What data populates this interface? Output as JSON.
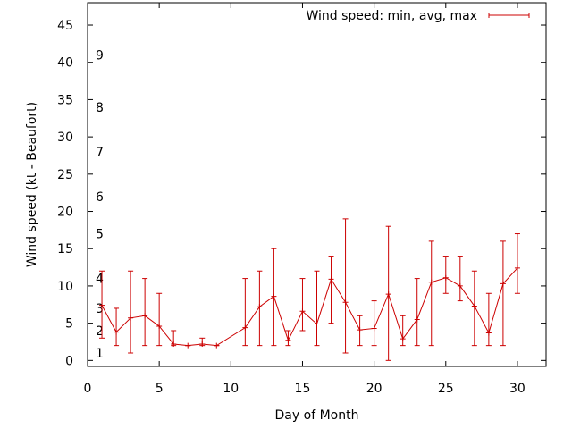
{
  "chart_data": {
    "type": "line",
    "title": "",
    "xlabel": "Day of Month",
    "ylabel": "Wind speed (kt - Beaufort)",
    "xlim": [
      0,
      32
    ],
    "ylim": [
      -0.8,
      48
    ],
    "xticks": [
      0,
      5,
      10,
      15,
      20,
      25,
      30
    ],
    "yticks": [
      0,
      5,
      10,
      15,
      20,
      25,
      30,
      35,
      40,
      45
    ],
    "grid": false,
    "legend": "top-right",
    "series": [
      {
        "name": "Wind speed: min, avg, max",
        "color": "#cc0000",
        "points": [
          {
            "x": 1,
            "min": 3,
            "avg": 7.4,
            "max": 12
          },
          {
            "x": 2,
            "min": 2,
            "avg": 3.8,
            "max": 7
          },
          {
            "x": 3,
            "min": 1,
            "avg": 5.7,
            "max": 12
          },
          {
            "x": 4,
            "min": 2,
            "avg": 6.0,
            "max": 11
          },
          {
            "x": 5,
            "min": 2,
            "avg": 4.6,
            "max": 9
          },
          {
            "x": 6,
            "min": 2,
            "avg": 2.2,
            "max": 4
          },
          {
            "x": 7,
            "min": 2,
            "avg": 2.0,
            "max": 2
          },
          {
            "x": 8,
            "min": 2,
            "avg": 2.2,
            "max": 3
          },
          {
            "x": 9,
            "min": 2,
            "avg": 2.0,
            "max": 2
          },
          {
            "x": 11,
            "min": 2,
            "avg": 4.4,
            "max": 11
          },
          {
            "x": 12,
            "min": 2,
            "avg": 7.2,
            "max": 12
          },
          {
            "x": 13,
            "min": 2,
            "avg": 8.6,
            "max": 15
          },
          {
            "x": 14,
            "min": 2,
            "avg": 2.7,
            "max": 4
          },
          {
            "x": 15,
            "min": 4,
            "avg": 6.6,
            "max": 11
          },
          {
            "x": 16,
            "min": 2,
            "avg": 4.9,
            "max": 12
          },
          {
            "x": 17,
            "min": 5,
            "avg": 10.9,
            "max": 14
          },
          {
            "x": 18,
            "min": 1,
            "avg": 7.8,
            "max": 19
          },
          {
            "x": 19,
            "min": 2,
            "avg": 4.1,
            "max": 6
          },
          {
            "x": 20,
            "min": 2,
            "avg": 4.3,
            "max": 8
          },
          {
            "x": 21,
            "min": 0,
            "avg": 8.9,
            "max": 18
          },
          {
            "x": 22,
            "min": 2,
            "avg": 2.9,
            "max": 6
          },
          {
            "x": 23,
            "min": 2,
            "avg": 5.5,
            "max": 11
          },
          {
            "x": 24,
            "min": 2,
            "avg": 10.5,
            "max": 16
          },
          {
            "x": 25,
            "min": 9,
            "avg": 11.1,
            "max": 14
          },
          {
            "x": 26,
            "min": 8,
            "avg": 10.0,
            "max": 14
          },
          {
            "x": 27,
            "min": 2,
            "avg": 7.3,
            "max": 12
          },
          {
            "x": 28,
            "min": 2,
            "avg": 3.7,
            "max": 9
          },
          {
            "x": 29,
            "min": 2,
            "avg": 10.3,
            "max": 16
          },
          {
            "x": 30,
            "min": 9,
            "avg": 12.4,
            "max": 17
          }
        ]
      }
    ],
    "beaufort_labels": [
      {
        "label": "1",
        "value": 1
      },
      {
        "label": "2",
        "value": 4
      },
      {
        "label": "3",
        "value": 7
      },
      {
        "label": "4",
        "value": 11
      },
      {
        "label": "5",
        "value": 17
      },
      {
        "label": "6",
        "value": 22
      },
      {
        "label": "7",
        "value": 28
      },
      {
        "label": "8",
        "value": 34
      },
      {
        "label": "9",
        "value": 41
      }
    ]
  }
}
